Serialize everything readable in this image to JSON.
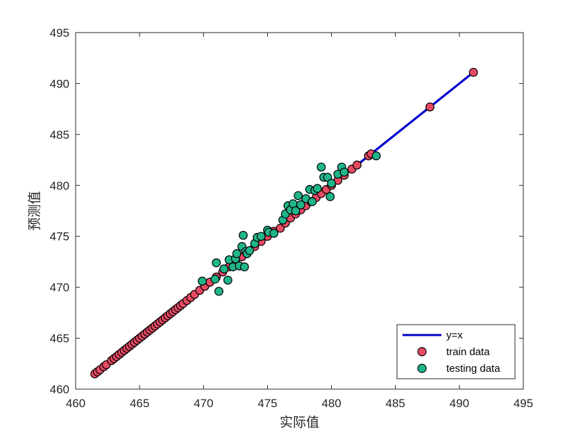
{
  "chart_data": {
    "type": "scatter",
    "xlabel": "实际值",
    "ylabel": "预测值",
    "xlim": [
      460,
      495
    ],
    "ylim": [
      460,
      495
    ],
    "xticks": [
      "460",
      "465",
      "470",
      "475",
      "480",
      "485",
      "490",
      "495"
    ],
    "yticks": [
      "460",
      "465",
      "470",
      "475",
      "480",
      "485",
      "490",
      "495"
    ],
    "grid": false,
    "legend_position": "bottom-right",
    "series": [
      {
        "name": "y=x",
        "kind": "line",
        "color": "#0000cc",
        "x": [
          461.5,
          491.1
        ],
        "y": [
          461.5,
          491.1
        ]
      },
      {
        "name": "train data",
        "kind": "scatter",
        "color": "#e84a64",
        "x": [
          461.5,
          461.7,
          461.9,
          462.2,
          462.4,
          462.8,
          463.0,
          463.2,
          463.4,
          463.6,
          463.8,
          464.0,
          464.2,
          464.4,
          464.6,
          464.8,
          465.0,
          465.2,
          465.4,
          465.6,
          465.8,
          466.0,
          466.2,
          466.4,
          466.6,
          466.8,
          467.0,
          467.2,
          467.4,
          467.6,
          467.8,
          468.0,
          468.2,
          468.4,
          468.7,
          469.0,
          469.3,
          469.7,
          470.1,
          470.5,
          471.0,
          471.5,
          472.0,
          472.5,
          473.0,
          473.5,
          474.0,
          474.5,
          475.0,
          475.5,
          476.0,
          476.4,
          476.8,
          477.2,
          477.6,
          478.0,
          478.4,
          478.8,
          479.2,
          479.6,
          480.0,
          480.5,
          481.0,
          481.6,
          482.0,
          482.9,
          483.1,
          487.7,
          491.1
        ],
        "y": [
          461.5,
          461.7,
          461.9,
          462.2,
          462.4,
          462.8,
          463.0,
          463.2,
          463.4,
          463.6,
          463.8,
          464.0,
          464.2,
          464.4,
          464.6,
          464.8,
          465.0,
          465.2,
          465.4,
          465.6,
          465.8,
          466.0,
          466.2,
          466.4,
          466.6,
          466.8,
          467.0,
          467.2,
          467.4,
          467.6,
          467.8,
          468.0,
          468.2,
          468.4,
          468.7,
          469.0,
          469.3,
          469.7,
          470.1,
          470.5,
          471.0,
          471.5,
          472.0,
          472.5,
          473.0,
          473.5,
          474.0,
          474.5,
          475.0,
          475.5,
          475.8,
          476.3,
          476.8,
          477.2,
          477.6,
          478.0,
          478.4,
          478.8,
          479.2,
          479.6,
          480.0,
          480.5,
          481.0,
          481.6,
          482.0,
          482.9,
          483.1,
          487.7,
          491.1
        ]
      },
      {
        "name": "testing data",
        "kind": "scatter",
        "color": "#1fb58b",
        "x": [
          469.9,
          470.9,
          471.2,
          471.0,
          471.6,
          471.9,
          472.0,
          472.3,
          472.5,
          472.6,
          472.8,
          473.0,
          473.1,
          473.2,
          473.3,
          473.4,
          473.6,
          474.0,
          474.2,
          474.5,
          475.0,
          475.1,
          475.5,
          476.2,
          476.4,
          476.6,
          476.8,
          477.0,
          477.2,
          477.4,
          477.6,
          478.0,
          478.3,
          478.5,
          478.7,
          478.9,
          479.2,
          479.4,
          479.7,
          479.9,
          480.0,
          480.5,
          480.8,
          481.0,
          483.5
        ],
        "y": [
          470.6,
          470.8,
          469.6,
          472.4,
          471.8,
          470.7,
          472.7,
          472.0,
          472.8,
          473.3,
          472.1,
          474.0,
          475.1,
          472.0,
          473.5,
          473.3,
          473.6,
          474.3,
          474.9,
          475.0,
          475.6,
          475.4,
          475.3,
          476.6,
          477.2,
          478.0,
          477.6,
          478.2,
          477.5,
          479.0,
          478.1,
          478.7,
          479.6,
          478.4,
          479.5,
          479.7,
          481.8,
          480.8,
          480.8,
          478.9,
          480.2,
          481.1,
          481.8,
          481.3,
          482.9
        ]
      }
    ]
  }
}
